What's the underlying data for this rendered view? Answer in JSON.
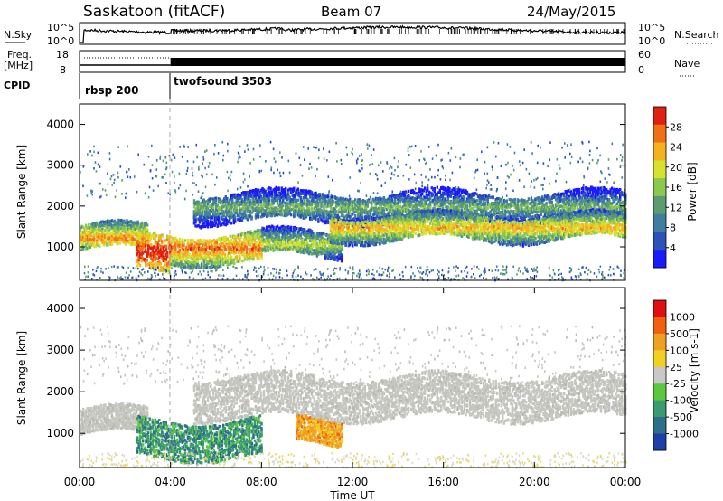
{
  "header": {
    "station": "Saskatoon (fitACF)",
    "beam": "Beam 07",
    "date": "24/May/2015"
  },
  "top_panels": {
    "nsky_label": "N.Sky",
    "nsky_ticks": [
      "10^5",
      "10^0"
    ],
    "nsearch_label": "N.Search",
    "nsearch_ticks": [
      "10^5",
      "10^0"
    ],
    "freq_label": "Freq.",
    "freq_unit": "[MHz]",
    "freq_ticks": [
      "18",
      "8"
    ],
    "nave_label": "Nave",
    "nave_ticks": [
      "60",
      "0"
    ],
    "cpid_label": "CPID",
    "cpid_segments": [
      {
        "label": "rbsp 200",
        "start_hour": 0
      },
      {
        "label": "twofsound 3503",
        "start_hour": 4
      }
    ]
  },
  "x_axis": {
    "label": "Time UT",
    "ticks": [
      "00:00",
      "04:00",
      "08:00",
      "12:00",
      "16:00",
      "20:00",
      "00:00"
    ],
    "range_hours": [
      0,
      24
    ]
  },
  "chart_data": [
    {
      "type": "heatmap",
      "ylabel": "Slant Range [km]",
      "yticks": [
        "4000",
        "3000",
        "2000",
        "1000"
      ],
      "ylim": [
        180,
        4500
      ],
      "colorbar": {
        "label": "Power [dB]",
        "ticks": [
          "28",
          "24",
          "20",
          "16",
          "12",
          "8",
          "4"
        ],
        "range": [
          0,
          30
        ],
        "colors": [
          "#1a1aff",
          "#2a52b8",
          "#3f7ea0",
          "#5b9c70",
          "#8cc850",
          "#d8e030",
          "#f6b020",
          "#f07018",
          "#e02010"
        ]
      },
      "bands": [
        {
          "t_start": 0.0,
          "t_end": 3.0,
          "range_center": 1250,
          "width": 300,
          "level": 24
        },
        {
          "t_start": 2.5,
          "t_end": 4.0,
          "range_center": 900,
          "width": 450,
          "level": 30
        },
        {
          "t_start": 4.0,
          "t_end": 8.0,
          "range_center": 1000,
          "width": 350,
          "level": 26
        },
        {
          "t_start": 8.0,
          "t_end": 11.5,
          "range_center": 1100,
          "width": 300,
          "level": 18
        },
        {
          "t_start": 5.0,
          "t_end": 24.0,
          "range_center": 2000,
          "width": 350,
          "level": 14
        },
        {
          "t_start": 11.0,
          "t_end": 24.0,
          "range_center": 1500,
          "width": 300,
          "level": 22
        }
      ]
    },
    {
      "type": "heatmap",
      "ylabel": "Slant Range [km]",
      "yticks": [
        "4000",
        "3000",
        "2000",
        "1000"
      ],
      "ylim": [
        180,
        4500
      ],
      "colorbar": {
        "label": "Velocity [m s-1]",
        "ticks": [
          "1000",
          "500",
          "100",
          "25",
          "-25",
          "-100",
          "-500",
          "-1000"
        ],
        "colors": [
          "#1c3fa8",
          "#2e6e8c",
          "#3a9a70",
          "#5ac840",
          "#c8c8c8",
          "#f0d020",
          "#f0a020",
          "#ef6010",
          "#e01010"
        ]
      },
      "bands": [
        {
          "t_start": 0.0,
          "t_end": 3.0,
          "range_center": 1300,
          "width": 300,
          "kind": "gray"
        },
        {
          "t_start": 2.5,
          "t_end": 8.0,
          "range_center": 900,
          "width": 450,
          "kind": "green"
        },
        {
          "t_start": 9.5,
          "t_end": 11.5,
          "range_center": 1100,
          "width": 300,
          "kind": "orange"
        },
        {
          "t_start": 5.0,
          "t_end": 24.0,
          "range_center": 1900,
          "width": 500,
          "kind": "gray"
        }
      ]
    }
  ]
}
